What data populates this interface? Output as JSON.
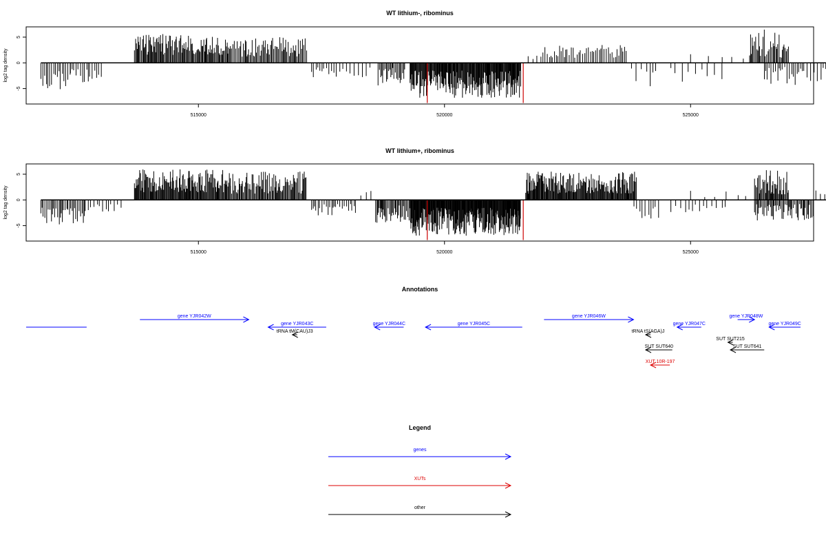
{
  "chart_data": [
    {
      "type": "bar",
      "title": "WT lithium-, ribominus",
      "ylabel": "log2 tag density",
      "xlabel": "",
      "xlim": [
        511500,
        527500
      ],
      "ylim": [
        -8,
        7
      ],
      "yticks": [
        -5,
        0,
        5
      ],
      "xticks": [
        515000,
        520000,
        525000
      ],
      "grid": false,
      "highlight_color": "#cc0000",
      "highlights": [
        {
          "x": 519650,
          "y": -7.8
        },
        {
          "x": 521600,
          "y": -7.8
        }
      ],
      "regions": [
        {
          "start": 511800,
          "end": 512400,
          "sign": -1,
          "min": 1.5,
          "max": 5.2,
          "step": 35
        },
        {
          "start": 512400,
          "end": 513050,
          "sign": -1,
          "min": 1.2,
          "max": 4.2,
          "step": 40
        },
        {
          "start": 513700,
          "end": 515650,
          "sign": 1,
          "min": 1.5,
          "max": 5.6,
          "step": 18
        },
        {
          "start": 515650,
          "end": 517200,
          "sign": 1,
          "min": 1.2,
          "max": 5.0,
          "step": 22
        },
        {
          "start": 517300,
          "end": 517800,
          "sign": -1,
          "min": 0.8,
          "max": 2.8,
          "step": 45
        },
        {
          "start": 517800,
          "end": 518500,
          "sign": -1,
          "min": 0.8,
          "max": 3.5,
          "step": 70
        },
        {
          "start": 518650,
          "end": 519200,
          "sign": -1,
          "min": 1.0,
          "max": 4.5,
          "step": 22
        },
        {
          "start": 519300,
          "end": 521550,
          "sign": -1,
          "min": 1.5,
          "max": 6.8,
          "step": 12
        },
        {
          "start": 521700,
          "end": 522000,
          "sign": 1,
          "min": 0.5,
          "max": 1.5,
          "step": 80
        },
        {
          "start": 522000,
          "end": 523700,
          "sign": 1,
          "min": 1.0,
          "max": 3.6,
          "step": 35
        },
        {
          "start": 523800,
          "end": 524350,
          "sign": -1,
          "min": 0.8,
          "max": 5.0,
          "step": 90
        },
        {
          "start": 524600,
          "end": 525650,
          "sign": -1,
          "min": 1.0,
          "max": 4.6,
          "step": 110
        },
        {
          "start": 525000,
          "end": 526300,
          "sign": 1,
          "min": 0.8,
          "max": 1.8,
          "step": 260
        },
        {
          "start": 526200,
          "end": 527000,
          "sign": 1,
          "min": 1.0,
          "max": 6.5,
          "step": 22
        },
        {
          "start": 526500,
          "end": 527300,
          "sign": -1,
          "min": 0.8,
          "max": 4.5,
          "step": 40
        },
        {
          "start": 527300,
          "end": 527900,
          "sign": -1,
          "min": 0.8,
          "max": 3.8,
          "step": 65
        }
      ]
    },
    {
      "type": "bar",
      "title": "WT lithium+, ribominus",
      "ylabel": "log2 tag density",
      "xlabel": "",
      "xlim": [
        511500,
        527500
      ],
      "ylim": [
        -8,
        7
      ],
      "yticks": [
        -5,
        0,
        5
      ],
      "xticks": [
        515000,
        520000,
        525000
      ],
      "grid": false,
      "highlight_color": "#cc0000",
      "highlights": [
        {
          "x": 519650,
          "y": -7.8
        },
        {
          "x": 521600,
          "y": -7.8
        }
      ],
      "regions": [
        {
          "start": 511800,
          "end": 512700,
          "sign": -1,
          "min": 1.5,
          "max": 4.8,
          "step": 28
        },
        {
          "start": 512700,
          "end": 513500,
          "sign": -1,
          "min": 0.8,
          "max": 2.6,
          "step": 55
        },
        {
          "start": 513700,
          "end": 515650,
          "sign": 1,
          "min": 1.5,
          "max": 6.0,
          "step": 14
        },
        {
          "start": 515650,
          "end": 517200,
          "sign": 1,
          "min": 1.2,
          "max": 5.5,
          "step": 18
        },
        {
          "start": 517300,
          "end": 518200,
          "sign": -1,
          "min": 0.8,
          "max": 3.2,
          "step": 38
        },
        {
          "start": 518300,
          "end": 518600,
          "sign": 1,
          "min": 0.8,
          "max": 2.0,
          "step": 120
        },
        {
          "start": 518600,
          "end": 519300,
          "sign": -1,
          "min": 1.0,
          "max": 4.5,
          "step": 20
        },
        {
          "start": 519300,
          "end": 521550,
          "sign": -1,
          "min": 1.5,
          "max": 7.0,
          "step": 10
        },
        {
          "start": 521650,
          "end": 523900,
          "sign": 1,
          "min": 1.2,
          "max": 5.5,
          "step": 14
        },
        {
          "start": 523850,
          "end": 524350,
          "sign": -1,
          "min": 0.8,
          "max": 4.5,
          "step": 65
        },
        {
          "start": 524600,
          "end": 525800,
          "sign": -1,
          "min": 0.8,
          "max": 2.5,
          "step": 90
        },
        {
          "start": 525000,
          "end": 526200,
          "sign": 1,
          "min": 0.5,
          "max": 1.8,
          "step": 240
        },
        {
          "start": 526300,
          "end": 527000,
          "sign": 1,
          "min": 1.0,
          "max": 5.8,
          "step": 16
        },
        {
          "start": 526300,
          "end": 527500,
          "sign": -1,
          "min": 0.8,
          "max": 4.0,
          "step": 22
        },
        {
          "start": 527500,
          "end": 527850,
          "sign": 1,
          "min": 0.8,
          "max": 2.2,
          "step": 70
        }
      ]
    }
  ],
  "annotations": {
    "title": "Annotations",
    "features": [
      {
        "label": "",
        "category": "gene",
        "start": 511350,
        "end": 512600,
        "direction": "none",
        "row": 2
      },
      {
        "label": "gene YJR042W",
        "category": "gene",
        "start": 513700,
        "end": 515950,
        "direction": "right",
        "row": 1
      },
      {
        "label": "gene YJR043C",
        "category": "gene",
        "start": 516350,
        "end": 517550,
        "direction": "left",
        "row": 2
      },
      {
        "label": "gene YJR044C",
        "category": "gene",
        "start": 518550,
        "end": 519150,
        "direction": "left",
        "row": 2
      },
      {
        "label": "gene YJR045C",
        "category": "gene",
        "start": 519600,
        "end": 521600,
        "direction": "left",
        "row": 2
      },
      {
        "label": "gene YJR046W",
        "category": "gene",
        "start": 522050,
        "end": 523900,
        "direction": "right",
        "row": 1
      },
      {
        "label": "gene YJR047C",
        "category": "gene",
        "start": 524800,
        "end": 525300,
        "direction": "left",
        "row": 2
      },
      {
        "label": "gene YJR048W",
        "category": "gene",
        "start": 526050,
        "end": 526400,
        "direction": "right",
        "row": 1
      },
      {
        "label": "gene YJR049C",
        "category": "gene",
        "start": 526700,
        "end": 527350,
        "direction": "left",
        "row": 2
      },
      {
        "label": "tRNA tM(CAU)J3",
        "category": "other",
        "start": 516850,
        "end": 516950,
        "direction": "left",
        "row": 3
      },
      {
        "label": "tRNA tS(AGA)J",
        "category": "other",
        "start": 524150,
        "end": 524250,
        "direction": "left",
        "row": 3
      },
      {
        "label": "SUT SUT640",
        "category": "other",
        "start": 524150,
        "end": 524700,
        "direction": "left",
        "row": 5
      },
      {
        "label": "SUT SUT215",
        "category": "other",
        "start": 525850,
        "end": 525950,
        "direction": "left",
        "row": 4
      },
      {
        "label": "SUT SUT641",
        "category": "other",
        "start": 525900,
        "end": 526600,
        "direction": "left",
        "row": 5
      },
      {
        "label": "XUT 10R-197",
        "category": "XUT",
        "start": 524250,
        "end": 524650,
        "direction": "left",
        "row": 7
      }
    ]
  },
  "legend": {
    "title": "Legend",
    "items": [
      {
        "label": "genes",
        "category": "gene"
      },
      {
        "label": "XUTs",
        "category": "XUT"
      },
      {
        "label": "other",
        "category": "other"
      }
    ]
  },
  "colors": {
    "gene": "#0000ff",
    "XUT": "#dd0000",
    "other": "#000000",
    "bars": "#000000",
    "axis": "#000000"
  }
}
